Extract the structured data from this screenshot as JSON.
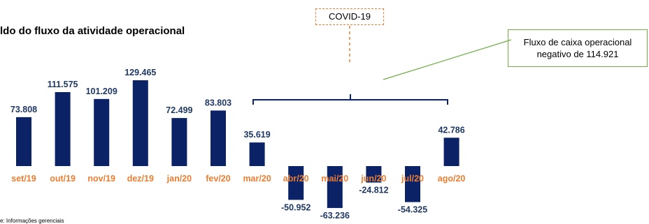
{
  "title": "ldo do fluxo da atividade operacional",
  "covid_label": "COVID-19",
  "callout": {
    "line1": "Fluxo de caixa operacional",
    "line2": "negativo de 114.921"
  },
  "source": "e: Informações gerenciais",
  "colors": {
    "bar": "#0B2366",
    "label": "#1F3864",
    "category": "#ED7D31",
    "covid_border": "#ED7D31",
    "callout_line": "#70AD47"
  },
  "chart_data": {
    "type": "bar",
    "title": "",
    "categories": [
      "set/19",
      "out/19",
      "nov/19",
      "dez/19",
      "jan/20",
      "fev/20",
      "mar/20",
      "abr/20",
      "mai/20",
      "jun/20",
      "jul/20",
      "ago/20"
    ],
    "values": [
      73808,
      111575,
      101209,
      129465,
      72499,
      83803,
      35619,
      -50952,
      -63236,
      -24812,
      -54325,
      42786
    ],
    "value_labels": [
      "73.808",
      "111.575",
      "101.209",
      "129.465",
      "72.499",
      "83.803",
      "35.619",
      "-50.952",
      "-63.236",
      "-24.812",
      "-54.325",
      "42.786"
    ],
    "xlabel": "",
    "ylabel": "",
    "grid": false
  }
}
